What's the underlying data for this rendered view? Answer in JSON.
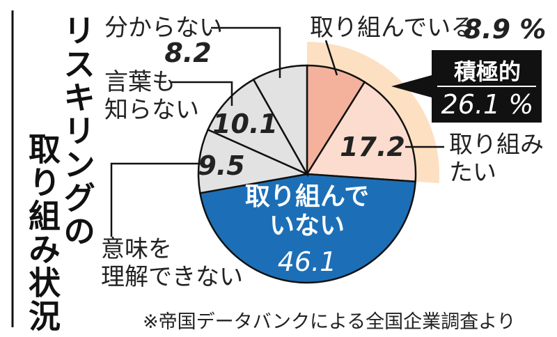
{
  "chart_data": {
    "type": "pie",
    "title_lines": [
      "リスキリングの",
      "取り組み状況"
    ],
    "categories": [
      "取り組んでいる",
      "取り組み\nたい",
      "取り組んで\nいない",
      "意味を\n理解できない",
      "言葉も\n知らない",
      "分からない"
    ],
    "values": [
      8.9,
      17.2,
      46.1,
      9.5,
      10.1,
      8.2
    ],
    "value_labels": [
      "8.9 %",
      "17.2",
      "46.1",
      "9.5",
      "10.1",
      "8.2"
    ],
    "colors": [
      "#f4b29c",
      "#fbdccf",
      "#1c6fb6",
      "#e2e2e2",
      "#e2e2e2",
      "#e2e2e2"
    ],
    "highlight": {
      "label": "積極的",
      "value": 26.1,
      "value_label": "26.1 %",
      "color": "#fde0c2"
    },
    "note": "※帝国データバンクによる全国企業調査より"
  }
}
